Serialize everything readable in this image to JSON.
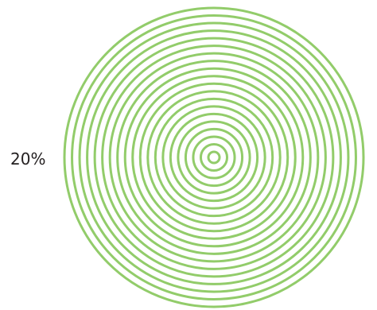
{
  "graphic": {
    "label": "20%",
    "ring_color": "#92cc6a",
    "background_color": "#ffffff",
    "ring_count": 20
  }
}
